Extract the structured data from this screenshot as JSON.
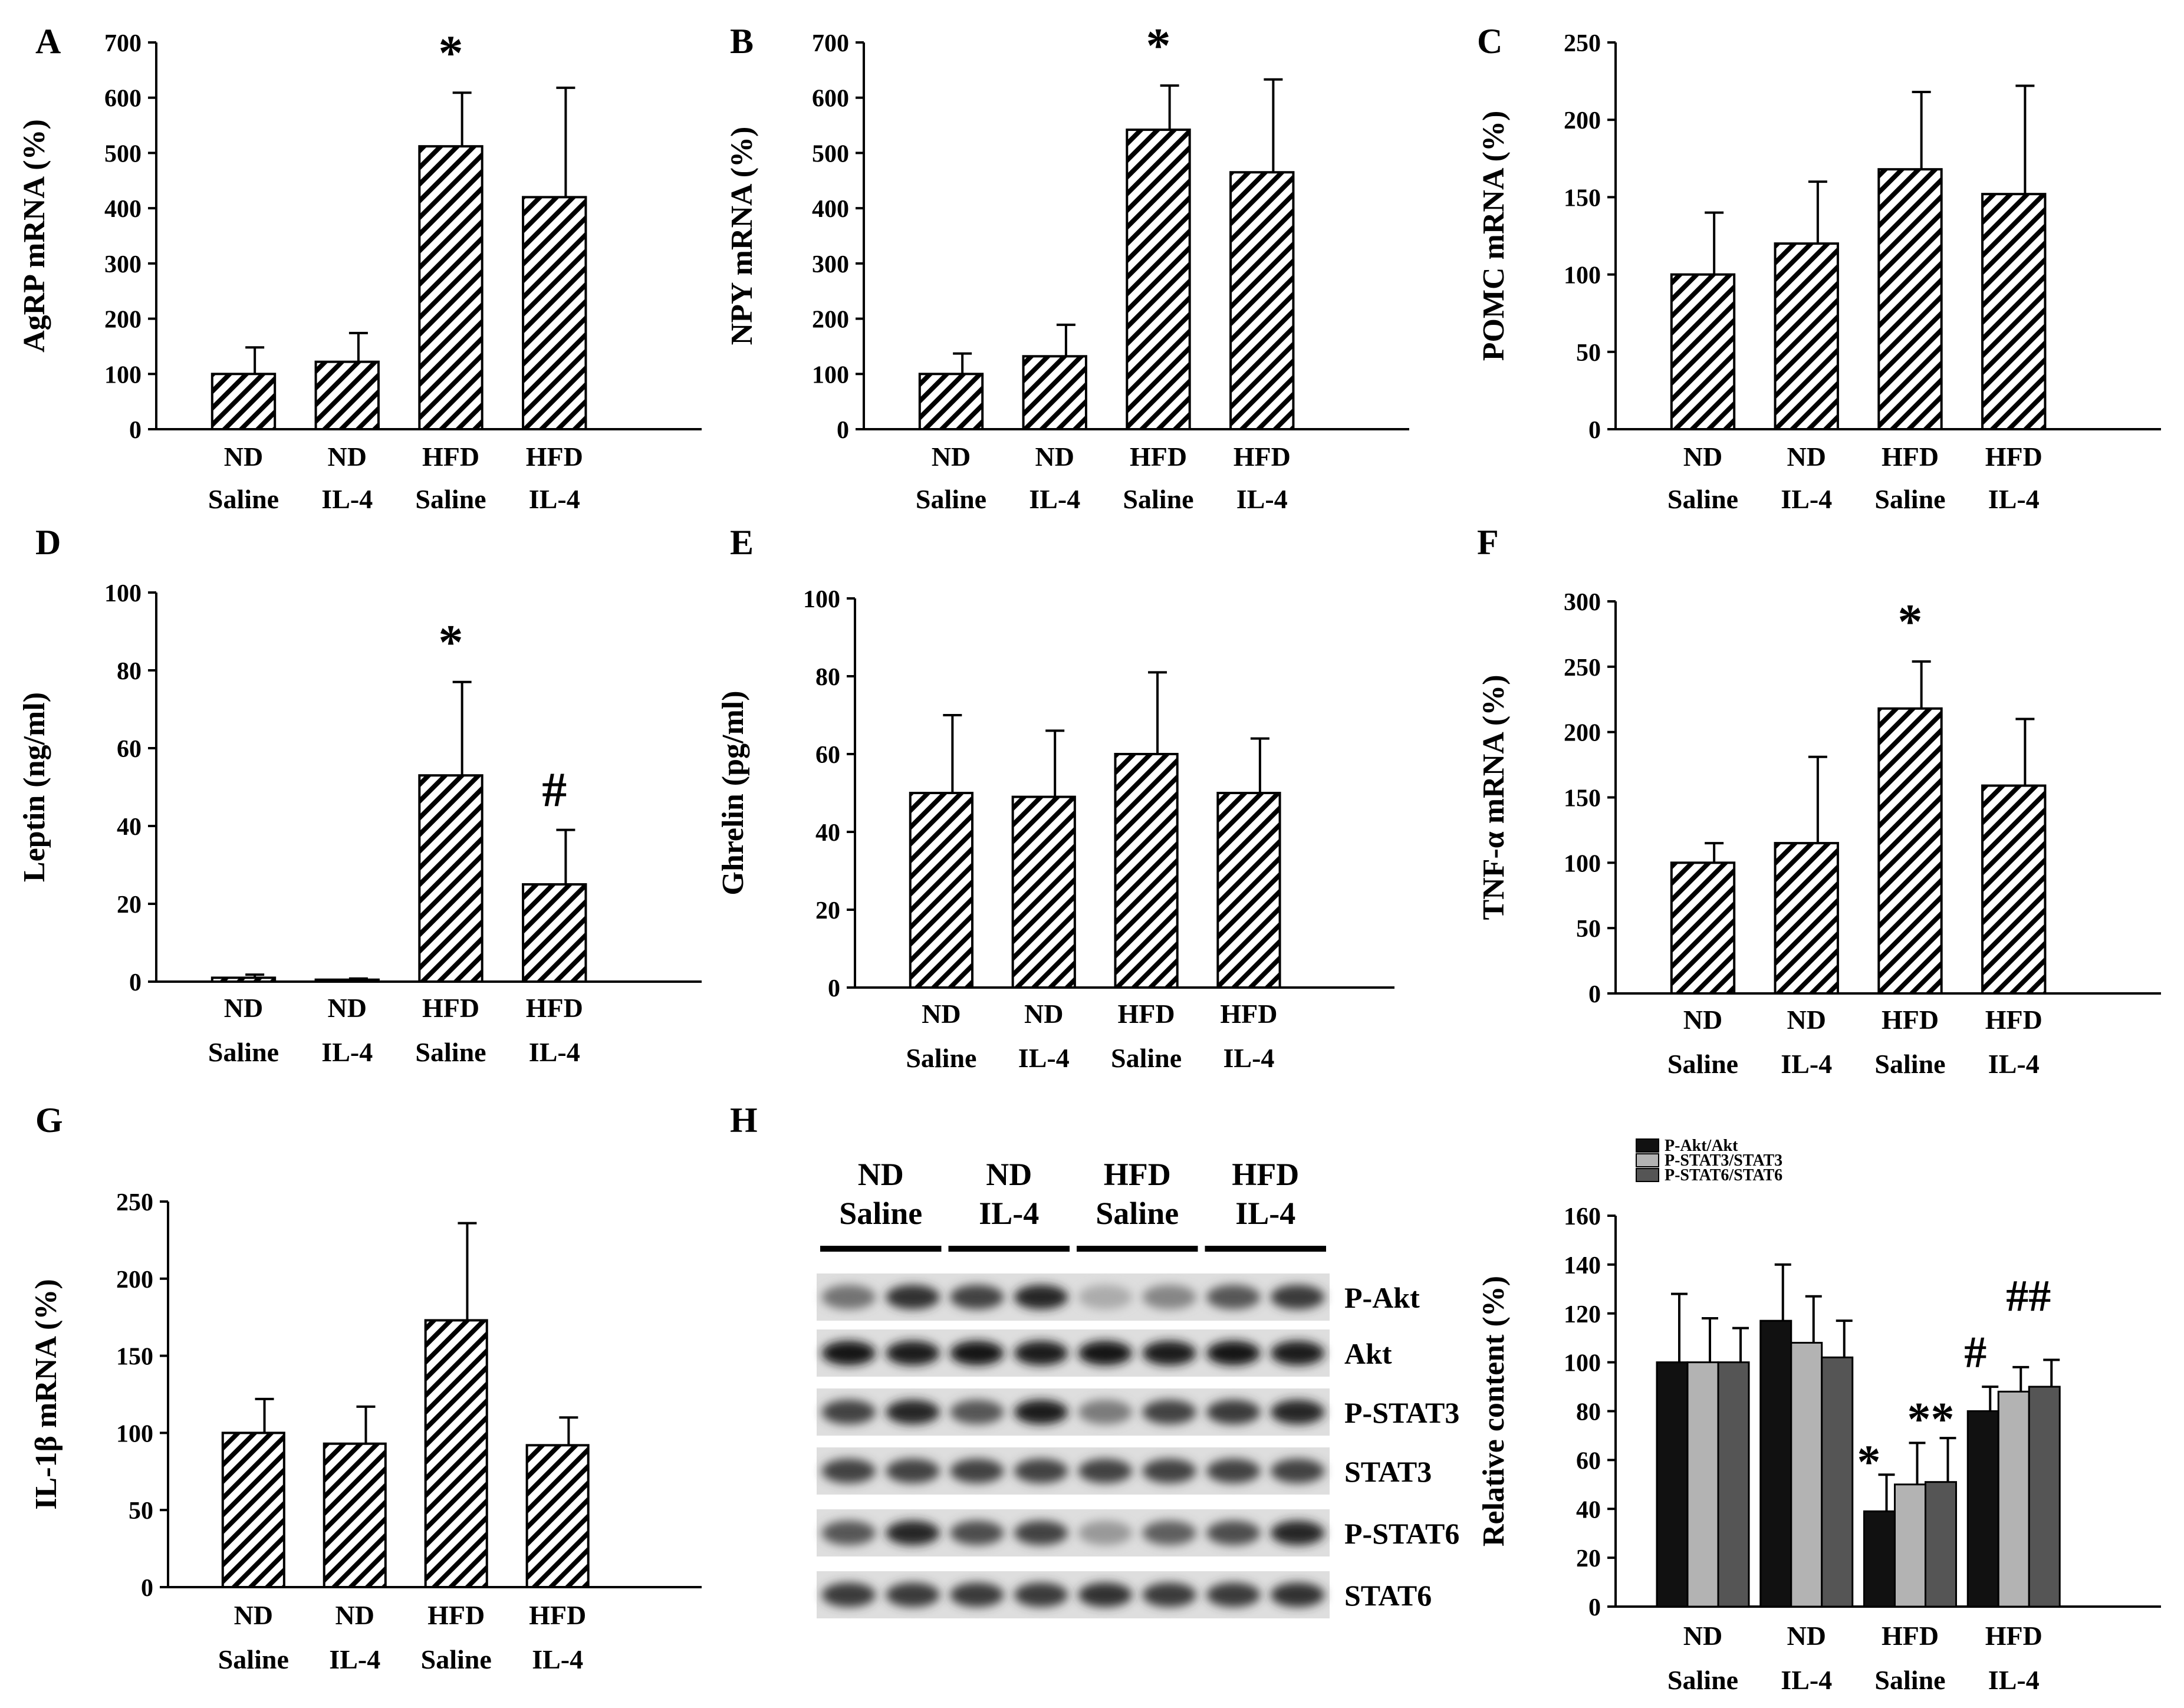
{
  "colors": {
    "ink": "#000000",
    "bg": "#ffffff",
    "akt": "#111111",
    "stat3": "#b3b3b3",
    "stat6": "#555555",
    "blot_bg": "#dedede"
  },
  "groups": [
    "ND\nSaline",
    "ND\nIL-4",
    "HFD\nSaline",
    "HFD\nIL-4"
  ],
  "chart_data": [
    {
      "id": "A",
      "panel_label": "A",
      "type": "bar",
      "ylabel": "AgRP mRNA (%)",
      "ylim": [
        0,
        700
      ],
      "yticks": [
        0,
        100,
        200,
        300,
        400,
        500,
        600,
        700
      ],
      "tick_labels": [
        "0",
        "100",
        "200",
        "300",
        "400",
        "500",
        "600",
        "700"
      ],
      "categories": [
        "ND Saline",
        "ND IL-4",
        "HFD Saline",
        "HFD IL-4"
      ],
      "values": [
        100,
        122,
        512,
        420
      ],
      "errors": [
        48,
        52,
        97,
        198
      ],
      "annotations": [
        "",
        "",
        "*",
        ""
      ]
    },
    {
      "id": "B",
      "panel_label": "B",
      "type": "bar",
      "ylabel": "NPY mRNA (%)",
      "ylim": [
        0,
        700
      ],
      "yticks": [
        0,
        100,
        200,
        300,
        400,
        500,
        600,
        700
      ],
      "tick_labels": [
        "0",
        "100",
        "200",
        "300",
        "400",
        "500",
        "600",
        "700"
      ],
      "categories": [
        "ND Saline",
        "ND IL-4",
        "HFD Saline",
        "HFD IL-4"
      ],
      "values": [
        100,
        132,
        542,
        465
      ],
      "errors": [
        37,
        57,
        80,
        168
      ],
      "annotations": [
        "",
        "",
        "*",
        ""
      ]
    },
    {
      "id": "C",
      "panel_label": "C",
      "type": "bar",
      "ylabel": "POMC mRNA (%)",
      "ylim": [
        0,
        250
      ],
      "yticks": [
        0,
        50,
        100,
        150,
        200,
        250
      ],
      "tick_labels": [
        "0",
        "50",
        "100",
        "150",
        "200",
        "250"
      ],
      "categories": [
        "ND Saline",
        "ND IL-4",
        "HFD Saline",
        "HFD IL-4"
      ],
      "values": [
        100,
        120,
        168,
        152
      ],
      "errors": [
        40,
        40,
        50,
        70
      ],
      "annotations": [
        "",
        "",
        "",
        ""
      ]
    },
    {
      "id": "D",
      "panel_label": "D",
      "type": "bar",
      "ylabel": "Leptin (ng/ml)",
      "ylim": [
        0,
        100
      ],
      "yticks": [
        0,
        20,
        40,
        60,
        80,
        100
      ],
      "tick_labels": [
        "0",
        "20",
        "40",
        "60",
        "80",
        "100"
      ],
      "categories": [
        "ND Saline",
        "ND IL-4",
        "HFD Saline",
        "HFD IL-4"
      ],
      "values": [
        1,
        0.5,
        53,
        25
      ],
      "errors": [
        0.8,
        0.3,
        24,
        14
      ],
      "annotations": [
        "",
        "",
        "*",
        "#"
      ]
    },
    {
      "id": "E",
      "panel_label": "E",
      "type": "bar",
      "ylabel": "Ghrelin (pg/ml)",
      "ylim": [
        0,
        100
      ],
      "yticks": [
        0,
        20,
        40,
        60,
        80,
        100
      ],
      "tick_labels": [
        "0",
        "20",
        "40",
        "60",
        "80",
        "100"
      ],
      "categories": [
        "ND Saline",
        "ND IL-4",
        "HFD Saline",
        "HFD IL-4"
      ],
      "values": [
        50,
        49,
        60,
        50
      ],
      "errors": [
        20,
        17,
        21,
        14
      ],
      "annotations": [
        "",
        "",
        "",
        ""
      ]
    },
    {
      "id": "F",
      "panel_label": "F",
      "type": "bar",
      "ylabel": "TNF-α mRNA (%)",
      "ylim": [
        0,
        300
      ],
      "yticks": [
        0,
        50,
        100,
        150,
        200,
        250,
        300
      ],
      "tick_labels": [
        "0",
        "50",
        "100",
        "150",
        "200",
        "250",
        "300"
      ],
      "categories": [
        "ND Saline",
        "ND IL-4",
        "HFD Saline",
        "HFD IL-4"
      ],
      "values": [
        100,
        115,
        218,
        159
      ],
      "errors": [
        15,
        66,
        36,
        51
      ],
      "annotations": [
        "",
        "",
        "*",
        ""
      ]
    },
    {
      "id": "G",
      "panel_label": "G",
      "type": "bar",
      "ylabel": "IL-1β mRNA (%)",
      "ylim": [
        0,
        250
      ],
      "yticks": [
        0,
        50,
        100,
        150,
        200,
        250
      ],
      "tick_labels": [
        "0",
        "50",
        "100",
        "150",
        "200",
        "250"
      ],
      "categories": [
        "ND Saline",
        "ND IL-4",
        "HFD Saline",
        "HFD IL-4"
      ],
      "values": [
        100,
        93,
        173,
        92
      ],
      "errors": [
        22,
        24,
        63,
        18
      ],
      "annotations": [
        "",
        "",
        "",
        ""
      ]
    },
    {
      "id": "H",
      "panel_label": "H",
      "type": "bar",
      "ylabel": "Relative content (%)",
      "ylim": [
        0,
        160
      ],
      "yticks": [
        0,
        20,
        40,
        60,
        80,
        100,
        120,
        140,
        160
      ],
      "tick_labels": [
        "0",
        "20",
        "40",
        "60",
        "80",
        "100",
        "120",
        "140",
        "160"
      ],
      "categories": [
        "ND Saline",
        "ND IL-4",
        "HFD Saline",
        "HFD IL-4"
      ],
      "series": [
        {
          "name": "P-Akt/Akt",
          "values": [
            100,
            117,
            39,
            80
          ],
          "errors": [
            28,
            23,
            15,
            10
          ]
        },
        {
          "name": "P-STAT3/STAT3",
          "values": [
            100,
            108,
            50,
            88
          ],
          "errors": [
            18,
            19,
            17,
            10
          ]
        },
        {
          "name": "P-STAT6/STAT6",
          "values": [
            100,
            102,
            51,
            90
          ],
          "errors": [
            14,
            15,
            18,
            11
          ]
        }
      ],
      "annotations": [
        {
          "text": "*",
          "group": 2
        },
        {
          "text": "**",
          "group": 2
        },
        {
          "text": "#",
          "group": 3
        },
        {
          "text": "##",
          "group": 3
        }
      ],
      "legend": [
        "P-Akt/Akt",
        "P-STAT3/STAT3",
        "P-STAT6/STAT6"
      ]
    }
  ],
  "blot": {
    "rows": [
      "P-Akt",
      "Akt",
      "P-STAT3",
      "STAT3",
      "P-STAT6",
      "STAT6"
    ],
    "intensities": [
      [
        0.45,
        0.8,
        0.7,
        0.85,
        0.15,
        0.35,
        0.6,
        0.75
      ],
      [
        0.95,
        0.9,
        0.95,
        0.9,
        0.95,
        0.9,
        0.95,
        0.9
      ],
      [
        0.7,
        0.85,
        0.6,
        0.9,
        0.4,
        0.7,
        0.75,
        0.85
      ],
      [
        0.7,
        0.7,
        0.7,
        0.7,
        0.7,
        0.7,
        0.7,
        0.7
      ],
      [
        0.6,
        0.85,
        0.65,
        0.7,
        0.25,
        0.55,
        0.65,
        0.85
      ],
      [
        0.75,
        0.75,
        0.75,
        0.75,
        0.8,
        0.75,
        0.75,
        0.8
      ]
    ],
    "groups": [
      "ND\nSaline",
      "ND\nIL-4",
      "HFD\nSaline",
      "HFD\nIL-4"
    ]
  }
}
